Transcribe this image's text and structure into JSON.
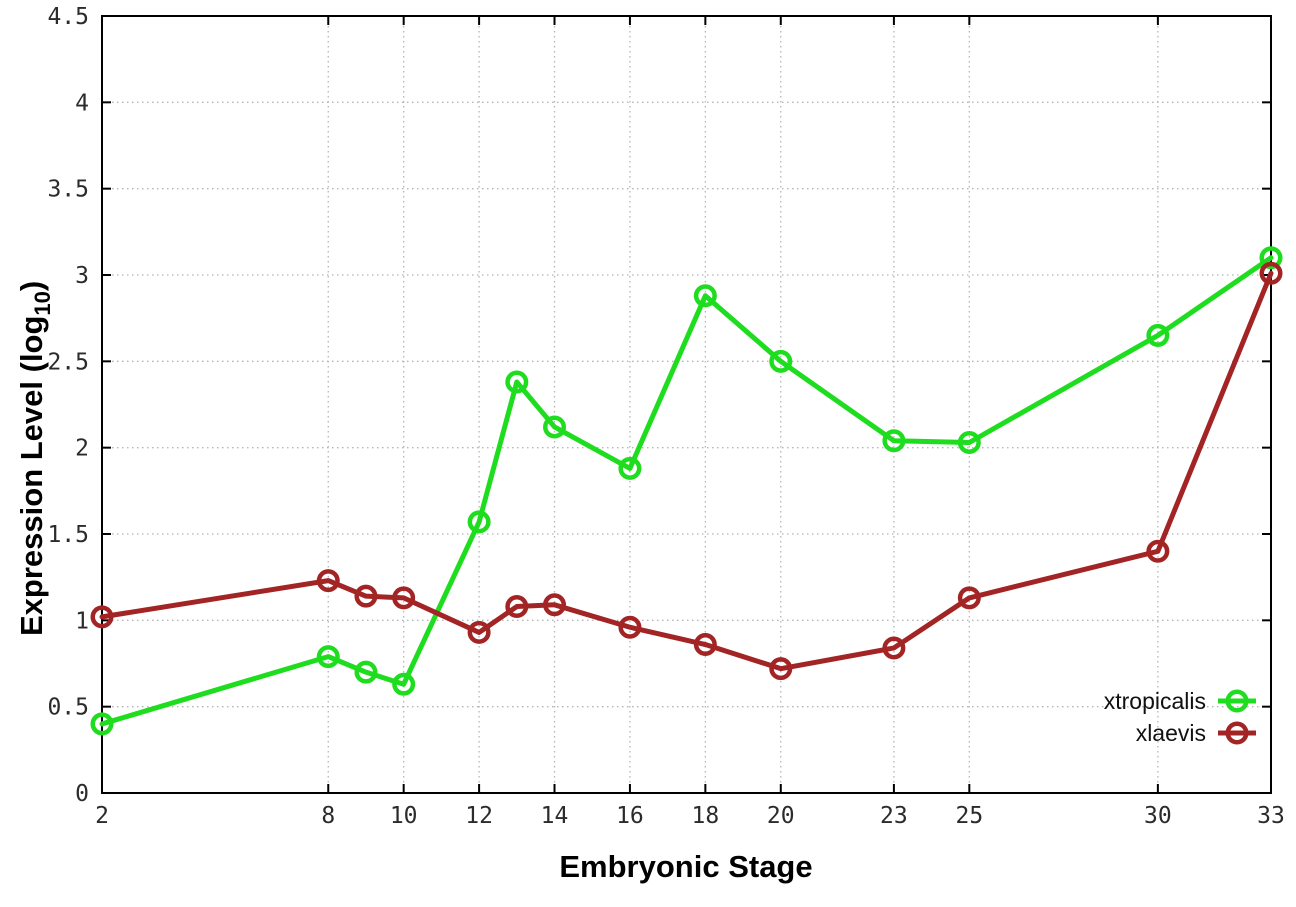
{
  "chart_data": {
    "type": "line",
    "title": "",
    "xlabel": "Embryonic Stage",
    "ylabel": "Expression Level (log10)",
    "ylabel_parts": {
      "main": "Expression Level (log",
      "sub": "10",
      "end": ")"
    },
    "xlim": [
      2,
      33
    ],
    "ylim": [
      0,
      4.5
    ],
    "grid": true,
    "legend_position": "inside-bottom-right",
    "x": [
      2,
      8,
      9,
      10,
      12,
      13,
      14,
      16,
      18,
      20,
      23,
      25,
      30,
      33
    ],
    "xticks": [
      2,
      8,
      10,
      12,
      14,
      16,
      18,
      20,
      23,
      25,
      30,
      33
    ],
    "xtick_labels": [
      "2",
      "8",
      "10",
      "12",
      "14",
      "16",
      "18",
      "20",
      "23",
      "25",
      "30",
      "33"
    ],
    "yticks": [
      0,
      0.5,
      1,
      1.5,
      2,
      2.5,
      3,
      3.5,
      4,
      4.5
    ],
    "ytick_labels": [
      "0",
      "0.5",
      "1",
      "1.5",
      "2",
      "2.5",
      "3",
      "3.5",
      "4",
      "4.5"
    ],
    "series": [
      {
        "name": "xtropicalis",
        "color": "#1edc1e",
        "values": [
          0.4,
          0.79,
          0.7,
          0.63,
          1.57,
          2.38,
          2.12,
          1.88,
          2.88,
          2.5,
          2.04,
          2.03,
          2.65,
          3.1
        ]
      },
      {
        "name": "xlaevis",
        "color": "#a32424",
        "values": [
          1.02,
          1.23,
          1.14,
          1.13,
          0.93,
          1.08,
          1.09,
          0.96,
          0.86,
          0.72,
          0.84,
          1.13,
          1.4,
          3.01
        ]
      }
    ],
    "style": {
      "frame_color": "#000000",
      "grid_color": "#b5b5b5",
      "tick_text_color": "#2b2b2b"
    }
  }
}
